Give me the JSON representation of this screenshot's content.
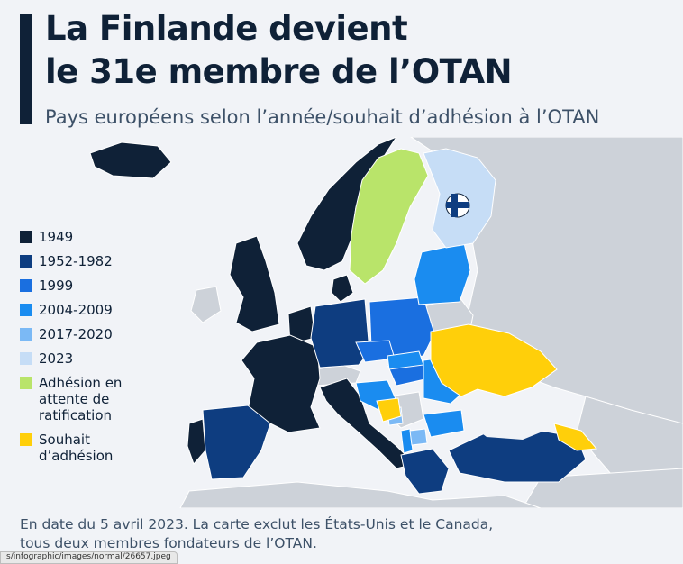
{
  "title_line1": "La Finlande devient",
  "title_line2": "le 31e membre de l’OTAN",
  "subtitle": "Pays européens selon l’année/souhait d’adhésion à l’OTAN",
  "legend": [
    {
      "label": "1949",
      "color": "#0f2137"
    },
    {
      "label": "1952-1982",
      "color": "#0e3d80"
    },
    {
      "label": "1999",
      "color": "#1a6fe0"
    },
    {
      "label": "2004-2009",
      "color": "#1a8cf0"
    },
    {
      "label": "2017-2020",
      "color": "#7bb9f5"
    },
    {
      "label": "2023",
      "color": "#c6ddf6"
    },
    {
      "label": "Adhésion en attente de ratification",
      "color": "#b9e46a"
    },
    {
      "label": "Souhait d’adhésion",
      "color": "#ffcf0a"
    }
  ],
  "map_colors": {
    "sea": "#f1f3f7",
    "non_member": "#cdd2d9",
    "non_member_light": "#e3e6ea",
    "border": "#ffffff"
  },
  "finland_marker_icon": "finnish-flag-icon",
  "footnote_line1": "En date du 5 avril 2023. La carte exclut les États-Unis et le Canada,",
  "footnote_line2": "tous deux membres fondateurs de l’OTAN.",
  "url_fragment": "s/infographic/images/normal/26657.jpeg"
}
